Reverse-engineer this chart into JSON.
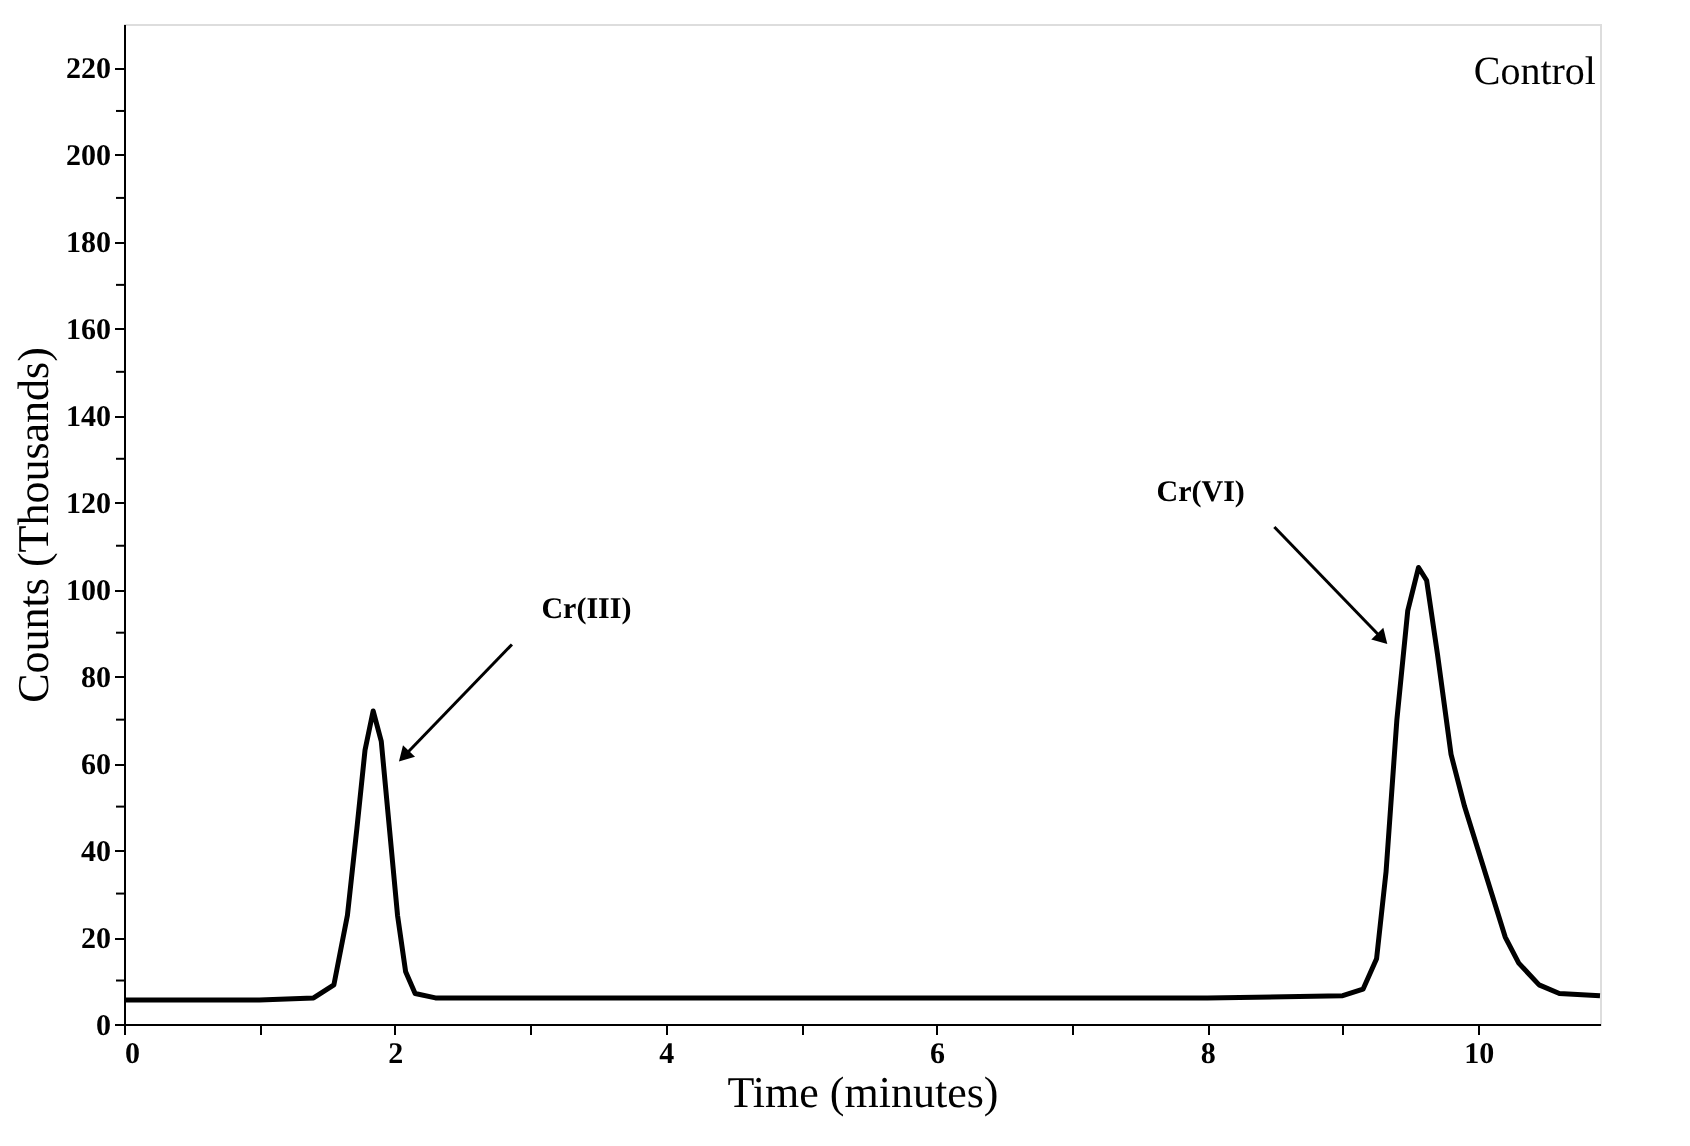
{
  "chart_data": {
    "type": "line",
    "xlabel": "Time (minutes)",
    "ylabel": "Counts (Thousands)",
    "x": [
      0,
      0.5,
      1,
      1.4,
      1.55,
      1.65,
      1.72,
      1.78,
      1.84,
      1.9,
      1.96,
      2.02,
      2.08,
      2.15,
      2.3,
      3,
      4,
      5,
      6,
      7,
      8,
      9,
      9.15,
      9.25,
      9.32,
      9.4,
      9.48,
      9.56,
      9.62,
      9.7,
      9.8,
      9.9,
      10.0,
      10.1,
      10.2,
      10.3,
      10.45,
      10.6,
      10.9
    ],
    "series": [
      {
        "color": "#000000",
        "values": [
          5.5,
          5.5,
          5.5,
          6,
          9,
          25,
          45,
          63,
          72,
          65,
          45,
          25,
          12,
          7,
          6,
          6,
          6,
          6,
          6,
          6,
          6,
          6.5,
          8,
          15,
          35,
          70,
          95,
          105,
          102,
          85,
          62,
          50,
          40,
          30,
          20,
          14,
          9,
          7,
          6.5
        ]
      }
    ],
    "xlim": [
      0,
      10.9
    ],
    "ylim": [
      0,
      230
    ],
    "xticks": [
      0,
      {
        "value": 1,
        "label": null
      },
      2,
      {
        "value": 3,
        "label": null
      },
      4,
      {
        "value": 5,
        "label": null
      },
      6,
      {
        "value": 7,
        "label": null
      },
      8,
      {
        "value": 9,
        "label": null
      },
      10
    ],
    "yticks": [
      0,
      {
        "value": 10,
        "label": null
      },
      20,
      {
        "value": 30,
        "label": null
      },
      40,
      {
        "value": 50,
        "label": null
      },
      60,
      {
        "value": 70,
        "label": null
      },
      80,
      {
        "value": 90,
        "label": null
      },
      100,
      {
        "value": 110,
        "label": null
      },
      120,
      {
        "value": 130,
        "label": null
      },
      140,
      {
        "value": 150,
        "label": null
      },
      160,
      {
        "value": 170,
        "label": null
      },
      180,
      {
        "value": 190,
        "label": null
      },
      200,
      {
        "value": 210,
        "label": null
      },
      220
    ],
    "grid": false,
    "marker": "none",
    "line_style": "solid",
    "annotations": [
      {
        "text": "Cr(III)",
        "x": 2.08,
        "y": 62
      },
      {
        "text": "Cr(VI)",
        "x": 9.28,
        "y": 89
      },
      "Control"
    ]
  }
}
